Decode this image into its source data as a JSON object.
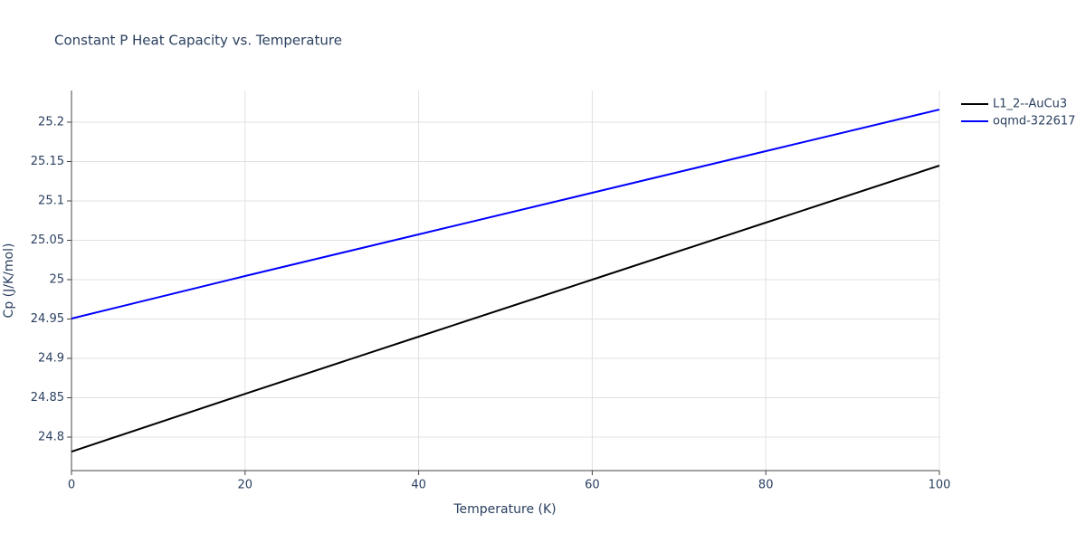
{
  "chart_data": {
    "type": "line",
    "title": "Constant P Heat Capacity vs. Temperature",
    "x_label": "Temperature (K)",
    "y_label": "Cp (J/K/mol)",
    "x": [
      0,
      20,
      40,
      60,
      80,
      100
    ],
    "series": [
      {
        "name": "L1_2--AuCu3",
        "color": "#000000",
        "values": [
          24.7816,
          24.855,
          24.9276,
          25.0,
          25.0724,
          25.1448
        ]
      },
      {
        "name": "oqmd-322617",
        "color": "#0000ff",
        "values": [
          24.9506,
          25.0046,
          25.0575,
          25.1103,
          25.1632,
          25.216
        ]
      }
    ],
    "xlim": [
      0,
      100
    ],
    "xticks": [
      0,
      20,
      40,
      60,
      80,
      100
    ],
    "ylim": [
      24.7575,
      25.2402
    ],
    "yticks": [
      24.8,
      24.85,
      24.9,
      24.95,
      25,
      25.05,
      25.1,
      25.15,
      25.2
    ],
    "grid": true,
    "legend": "right"
  }
}
